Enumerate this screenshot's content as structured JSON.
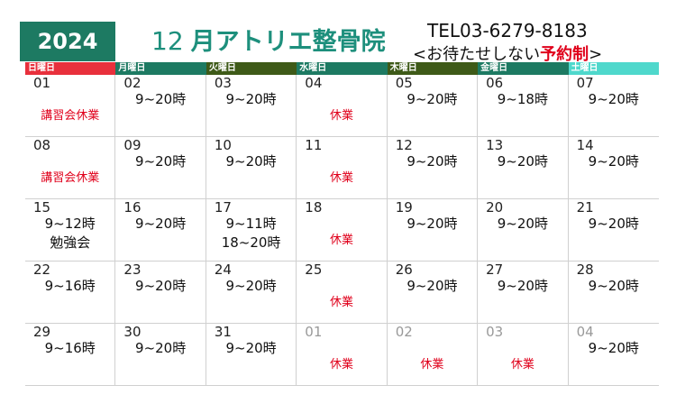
{
  "header": {
    "year": "2024",
    "month": "12",
    "month_unit": "月",
    "clinic_name": "アトリエ整骨院",
    "tel": "TEL03-6279-8183",
    "note_open": "<お待たせしない",
    "note_highlight": "予約制",
    "note_close": ">"
  },
  "weekdays": [
    {
      "label": "日曜日",
      "color": "#e8303c"
    },
    {
      "label": "月曜日",
      "color": "#1d7a62"
    },
    {
      "label": "火曜日",
      "color": "#3e5a18"
    },
    {
      "label": "水曜日",
      "color": "#1d7a62"
    },
    {
      "label": "木曜日",
      "color": "#3e5a18"
    },
    {
      "label": "金曜日",
      "color": "#1d7a62"
    },
    {
      "label": "土曜日",
      "color": "#4fd8cc"
    }
  ],
  "weeks": [
    [
      {
        "date": "01",
        "closed": "講習会休業"
      },
      {
        "date": "02",
        "lines": [
          "9~20時"
        ]
      },
      {
        "date": "03",
        "lines": [
          "9~20時"
        ]
      },
      {
        "date": "04",
        "closed": "休業"
      },
      {
        "date": "05",
        "lines": [
          "9~20時"
        ]
      },
      {
        "date": "06",
        "lines": [
          "9~18時"
        ]
      },
      {
        "date": "07",
        "lines": [
          "9~20時"
        ]
      }
    ],
    [
      {
        "date": "08",
        "closed": "講習会休業"
      },
      {
        "date": "09",
        "lines": [
          "9~20時"
        ]
      },
      {
        "date": "10",
        "lines": [
          "9~20時"
        ]
      },
      {
        "date": "11",
        "closed": "休業"
      },
      {
        "date": "12",
        "lines": [
          "9~20時"
        ]
      },
      {
        "date": "13",
        "lines": [
          "9~20時"
        ]
      },
      {
        "date": "14",
        "lines": [
          "9~20時"
        ]
      }
    ],
    [
      {
        "date": "15",
        "lines": [
          "9~12時",
          "勉強会"
        ]
      },
      {
        "date": "16",
        "lines": [
          "9~20時"
        ]
      },
      {
        "date": "17",
        "lines": [
          "9~11時",
          "18~20時"
        ]
      },
      {
        "date": "18",
        "closed": "休業"
      },
      {
        "date": "19",
        "lines": [
          "9~20時"
        ]
      },
      {
        "date": "20",
        "lines": [
          "9~20時"
        ]
      },
      {
        "date": "21",
        "lines": [
          "9~20時"
        ]
      }
    ],
    [
      {
        "date": "22",
        "lines": [
          "9~16時"
        ]
      },
      {
        "date": "23",
        "lines": [
          "9~20時"
        ]
      },
      {
        "date": "24",
        "lines": [
          "9~20時"
        ]
      },
      {
        "date": "25",
        "closed": "休業"
      },
      {
        "date": "26",
        "lines": [
          "9~20時"
        ]
      },
      {
        "date": "27",
        "lines": [
          "9~20時"
        ]
      },
      {
        "date": "28",
        "lines": [
          "9~20時"
        ]
      }
    ],
    [
      {
        "date": "29",
        "lines": [
          "9~16時"
        ]
      },
      {
        "date": "30",
        "lines": [
          "9~20時"
        ]
      },
      {
        "date": "31",
        "lines": [
          "9~20時"
        ]
      },
      {
        "date": "01",
        "closed": "休業",
        "other_month": true
      },
      {
        "date": "02",
        "closed": "休業",
        "other_month": true
      },
      {
        "date": "03",
        "closed": "休業",
        "other_month": true
      },
      {
        "date": "04",
        "lines": [
          "9~20時"
        ],
        "other_month": true
      }
    ]
  ]
}
